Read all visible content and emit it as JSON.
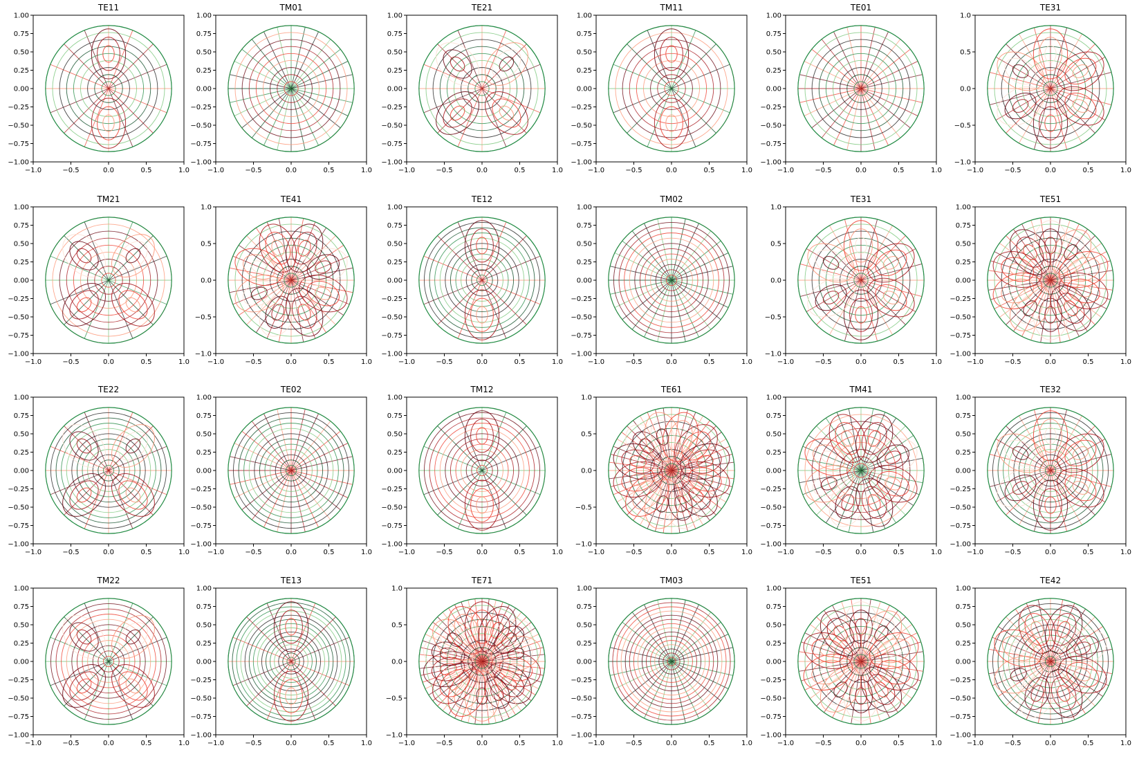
{
  "figure": {
    "layout": {
      "rows": 4,
      "cols": 6
    },
    "colors": {
      "electric_field": [
        "#fde0d2",
        "#fc9272",
        "#ef3b2c",
        "#a50f15",
        "#67000d"
      ],
      "magnetic_field": [
        "#c7e9c0",
        "#74c476",
        "#238b45",
        "#00441b",
        "#1a1a1a"
      ]
    }
  },
  "chart_data": [
    {
      "type": "streamplot",
      "title": "TE11",
      "mode": {
        "family": "TE",
        "m": 1,
        "n": 1
      },
      "xticks": [
        "−1.0",
        "−0.5",
        "0.0",
        "0.5",
        "1.0"
      ],
      "yticks": [
        "1.00",
        "0.75",
        "0.50",
        "0.25",
        "0.00",
        "−0.25",
        "−0.50",
        "−0.75",
        "−1.00"
      ],
      "xlim": [
        -1.0,
        1.0
      ],
      "ylim": [
        -1.0,
        1.0
      ],
      "grid": false,
      "legend": "none"
    },
    {
      "type": "streamplot",
      "title": "TM01",
      "mode": {
        "family": "TM",
        "m": 0,
        "n": 1
      },
      "xticks": [
        "−1.0",
        "−0.5",
        "0.0",
        "0.5",
        "1.0"
      ],
      "yticks": [
        "1.00",
        "0.75",
        "0.50",
        "0.25",
        "0.00",
        "−0.25",
        "−0.50",
        "−0.75",
        "−1.00"
      ],
      "xlim": [
        -1.0,
        1.0
      ],
      "ylim": [
        -1.0,
        1.0
      ],
      "grid": false,
      "legend": "none"
    },
    {
      "type": "streamplot",
      "title": "TE21",
      "mode": {
        "family": "TE",
        "m": 2,
        "n": 1
      },
      "xticks": [
        "−1.0",
        "−0.5",
        "0.0",
        "0.5",
        "1.0"
      ],
      "yticks": [
        "1.00",
        "0.75",
        "0.50",
        "0.25",
        "0.00",
        "−0.25",
        "−0.50",
        "−0.75",
        "−1.00"
      ],
      "xlim": [
        -1.0,
        1.0
      ],
      "ylim": [
        -1.0,
        1.0
      ],
      "grid": false,
      "legend": "none"
    },
    {
      "type": "streamplot",
      "title": "TM11",
      "mode": {
        "family": "TM",
        "m": 1,
        "n": 1
      },
      "xticks": [
        "−1.0",
        "−0.5",
        "0.0",
        "0.5",
        "1.0"
      ],
      "yticks": [
        "1.00",
        "0.75",
        "0.50",
        "0.25",
        "0.00",
        "−0.25",
        "−0.50",
        "−0.75",
        "−1.00"
      ],
      "xlim": [
        -1.0,
        1.0
      ],
      "ylim": [
        -1.0,
        1.0
      ],
      "grid": false,
      "legend": "none"
    },
    {
      "type": "streamplot",
      "title": "TE01",
      "mode": {
        "family": "TE",
        "m": 0,
        "n": 1
      },
      "xticks": [
        "−1.0",
        "−0.5",
        "0.0",
        "0.5",
        "1.0"
      ],
      "yticks": [
        "1.00",
        "0.75",
        "0.50",
        "0.25",
        "0.00",
        "−0.25",
        "−0.50",
        "−0.75",
        "−1.00"
      ],
      "xlim": [
        -1.0,
        1.0
      ],
      "ylim": [
        -1.0,
        1.0
      ],
      "grid": false,
      "legend": "none"
    },
    {
      "type": "streamplot",
      "title": "TE31",
      "mode": {
        "family": "TE",
        "m": 3,
        "n": 1
      },
      "xticks": [
        "−1.0",
        "−0.5",
        "0.0",
        "0.5",
        "1.0"
      ],
      "yticks": [
        "1.0",
        "0.5",
        "0.0",
        "−0.5",
        "−1.0"
      ],
      "xlim": [
        -1.0,
        1.0
      ],
      "ylim": [
        -1.0,
        1.0
      ],
      "grid": false,
      "legend": "none"
    },
    {
      "type": "streamplot",
      "title": "TM21",
      "mode": {
        "family": "TM",
        "m": 2,
        "n": 1
      },
      "xticks": [
        "−1.0",
        "−0.5",
        "0.0",
        "0.5",
        "1.0"
      ],
      "yticks": [
        "1.00",
        "0.75",
        "0.50",
        "0.25",
        "0.00",
        "−0.25",
        "−0.50",
        "−0.75",
        "−1.00"
      ],
      "xlim": [
        -1.0,
        1.0
      ],
      "ylim": [
        -1.0,
        1.0
      ],
      "grid": false,
      "legend": "none"
    },
    {
      "type": "streamplot",
      "title": "TE41",
      "mode": {
        "family": "TE",
        "m": 4,
        "n": 1
      },
      "xticks": [
        "−1.0",
        "−0.5",
        "0.0",
        "0.5",
        "1.0"
      ],
      "yticks": [
        "1.0",
        "0.5",
        "0.0",
        "−0.5",
        "−1.0"
      ],
      "xlim": [
        -1.0,
        1.0
      ],
      "ylim": [
        -1.0,
        1.0
      ],
      "grid": false,
      "legend": "none"
    },
    {
      "type": "streamplot",
      "title": "TE12",
      "mode": {
        "family": "TE",
        "m": 1,
        "n": 2
      },
      "xticks": [
        "−1.0",
        "−0.5",
        "0.0",
        "0.5",
        "1.0"
      ],
      "yticks": [
        "1.00",
        "0.75",
        "0.50",
        "0.25",
        "0.00",
        "−0.25",
        "−0.50",
        "−0.75",
        "−1.00"
      ],
      "xlim": [
        -1.0,
        1.0
      ],
      "ylim": [
        -1.0,
        1.0
      ],
      "grid": false,
      "legend": "none"
    },
    {
      "type": "streamplot",
      "title": "TM02",
      "mode": {
        "family": "TM",
        "m": 0,
        "n": 2
      },
      "xticks": [
        "−1.0",
        "−0.5",
        "0.0",
        "0.5",
        "1.0"
      ],
      "yticks": [
        "1.00",
        "0.75",
        "0.50",
        "0.25",
        "0.00",
        "−0.25",
        "−0.50",
        "−0.75",
        "−1.00"
      ],
      "xlim": [
        -1.0,
        1.0
      ],
      "ylim": [
        -1.0,
        1.0
      ],
      "grid": false,
      "legend": "none"
    },
    {
      "type": "streamplot",
      "title": "TE31",
      "mode": {
        "family": "TE",
        "m": 3,
        "n": 1
      },
      "xticks": [
        "−1.0",
        "−0.5",
        "0.0",
        "0.5",
        "1.0"
      ],
      "yticks": [
        "1.0",
        "0.5",
        "0.0",
        "−0.5",
        "−1.0"
      ],
      "xlim": [
        -1.0,
        1.0
      ],
      "ylim": [
        -1.0,
        1.0
      ],
      "grid": false,
      "legend": "none"
    },
    {
      "type": "streamplot",
      "title": "TE51",
      "mode": {
        "family": "TE",
        "m": 5,
        "n": 1
      },
      "xticks": [
        "−1.0",
        "−0.5",
        "0.0",
        "0.5",
        "1.0"
      ],
      "yticks": [
        "1.00",
        "0.75",
        "0.50",
        "0.25",
        "0.00",
        "−0.25",
        "−0.50",
        "−0.75",
        "−1.00"
      ],
      "xlim": [
        -1.0,
        1.0
      ],
      "ylim": [
        -1.0,
        1.0
      ],
      "grid": false,
      "legend": "none"
    },
    {
      "type": "streamplot",
      "title": "TE22",
      "mode": {
        "family": "TE",
        "m": 2,
        "n": 2
      },
      "xticks": [
        "−1.0",
        "−0.5",
        "0.0",
        "0.5",
        "1.0"
      ],
      "yticks": [
        "1.00",
        "0.75",
        "0.50",
        "0.25",
        "0.00",
        "−0.25",
        "−0.50",
        "−0.75",
        "−1.00"
      ],
      "xlim": [
        -1.0,
        1.0
      ],
      "ylim": [
        -1.0,
        1.0
      ],
      "grid": false,
      "legend": "none"
    },
    {
      "type": "streamplot",
      "title": "TE02",
      "mode": {
        "family": "TE",
        "m": 0,
        "n": 2
      },
      "xticks": [
        "−1.0",
        "−0.5",
        "0.0",
        "0.5",
        "1.0"
      ],
      "yticks": [
        "1.00",
        "0.75",
        "0.50",
        "0.25",
        "0.00",
        "−0.25",
        "−0.50",
        "−0.75",
        "−1.00"
      ],
      "xlim": [
        -1.0,
        1.0
      ],
      "ylim": [
        -1.0,
        1.0
      ],
      "grid": false,
      "legend": "none"
    },
    {
      "type": "streamplot",
      "title": "TM12",
      "mode": {
        "family": "TM",
        "m": 1,
        "n": 2
      },
      "xticks": [
        "−1.0",
        "−0.5",
        "0.0",
        "0.5",
        "1.0"
      ],
      "yticks": [
        "1.00",
        "0.75",
        "0.50",
        "0.25",
        "0.00",
        "−0.25",
        "−0.50",
        "−0.75",
        "−1.00"
      ],
      "xlim": [
        -1.0,
        1.0
      ],
      "ylim": [
        -1.0,
        1.0
      ],
      "grid": false,
      "legend": "none"
    },
    {
      "type": "streamplot",
      "title": "TE61",
      "mode": {
        "family": "TE",
        "m": 6,
        "n": 1
      },
      "xticks": [
        "−1.0",
        "−0.5",
        "0.0",
        "0.5",
        "1.0"
      ],
      "yticks": [
        "1.0",
        "0.5",
        "0.0",
        "−0.5",
        "−1.0"
      ],
      "xlim": [
        -1.0,
        1.0
      ],
      "ylim": [
        -1.0,
        1.0
      ],
      "grid": false,
      "legend": "none"
    },
    {
      "type": "streamplot",
      "title": "TM41",
      "mode": {
        "family": "TM",
        "m": 4,
        "n": 1
      },
      "xticks": [
        "−1.0",
        "−0.5",
        "0.0",
        "0.5",
        "1.0"
      ],
      "yticks": [
        "1.00",
        "0.75",
        "0.50",
        "0.25",
        "0.00",
        "−0.25",
        "−0.50",
        "−0.75",
        "−1.00"
      ],
      "xlim": [
        -1.0,
        1.0
      ],
      "ylim": [
        -1.0,
        1.0
      ],
      "grid": false,
      "legend": "none"
    },
    {
      "type": "streamplot",
      "title": "TE32",
      "mode": {
        "family": "TE",
        "m": 3,
        "n": 2
      },
      "xticks": [
        "−1.0",
        "−0.5",
        "0.0",
        "0.5",
        "1.0"
      ],
      "yticks": [
        "1.00",
        "0.75",
        "0.50",
        "0.25",
        "0.00",
        "−0.25",
        "−0.50",
        "−0.75",
        "−1.00"
      ],
      "xlim": [
        -1.0,
        1.0
      ],
      "ylim": [
        -1.0,
        1.0
      ],
      "grid": false,
      "legend": "none"
    },
    {
      "type": "streamplot",
      "title": "TM22",
      "mode": {
        "family": "TM",
        "m": 2,
        "n": 2
      },
      "xticks": [
        "−1.0",
        "−0.5",
        "0.0",
        "0.5",
        "1.0"
      ],
      "yticks": [
        "1.00",
        "0.75",
        "0.50",
        "0.25",
        "0.00",
        "−0.25",
        "−0.50",
        "−0.75",
        "−1.00"
      ],
      "xlim": [
        -1.0,
        1.0
      ],
      "ylim": [
        -1.0,
        1.0
      ],
      "grid": false,
      "legend": "none"
    },
    {
      "type": "streamplot",
      "title": "TE13",
      "mode": {
        "family": "TE",
        "m": 1,
        "n": 3
      },
      "xticks": [
        "−1.0",
        "−0.5",
        "0.0",
        "0.5",
        "1.0"
      ],
      "yticks": [
        "1.00",
        "0.75",
        "0.50",
        "0.25",
        "0.00",
        "−0.25",
        "−0.50",
        "−0.75",
        "−1.00"
      ],
      "xlim": [
        -1.0,
        1.0
      ],
      "ylim": [
        -1.0,
        1.0
      ],
      "grid": false,
      "legend": "none"
    },
    {
      "type": "streamplot",
      "title": "TE71",
      "mode": {
        "family": "TE",
        "m": 7,
        "n": 1
      },
      "xticks": [
        "−1.0",
        "−0.5",
        "0.0",
        "0.5",
        "1.0"
      ],
      "yticks": [
        "1.0",
        "0.5",
        "0.0",
        "−0.5",
        "−1.0"
      ],
      "xlim": [
        -1.0,
        1.0
      ],
      "ylim": [
        -1.0,
        1.0
      ],
      "grid": false,
      "legend": "none"
    },
    {
      "type": "streamplot",
      "title": "TM03",
      "mode": {
        "family": "TM",
        "m": 0,
        "n": 3
      },
      "xticks": [
        "−1.0",
        "−0.5",
        "0.0",
        "0.5",
        "1.0"
      ],
      "yticks": [
        "1.00",
        "0.75",
        "0.50",
        "0.25",
        "0.00",
        "−0.25",
        "−0.50",
        "−0.75",
        "−1.00"
      ],
      "xlim": [
        -1.0,
        1.0
      ],
      "ylim": [
        -1.0,
        1.0
      ],
      "grid": false,
      "legend": "none"
    },
    {
      "type": "streamplot",
      "title": "TE51",
      "mode": {
        "family": "TE",
        "m": 5,
        "n": 1
      },
      "xticks": [
        "−1.0",
        "−0.5",
        "0.0",
        "0.5",
        "1.0"
      ],
      "yticks": [
        "1.00",
        "0.75",
        "0.50",
        "0.25",
        "0.00",
        "−0.25",
        "−0.50",
        "−0.75",
        "−1.00"
      ],
      "xlim": [
        -1.0,
        1.0
      ],
      "ylim": [
        -1.0,
        1.0
      ],
      "grid": false,
      "legend": "none"
    },
    {
      "type": "streamplot",
      "title": "TE42",
      "mode": {
        "family": "TE",
        "m": 4,
        "n": 2
      },
      "xticks": [
        "−1.0",
        "−0.5",
        "0.0",
        "0.5",
        "1.0"
      ],
      "yticks": [
        "1.00",
        "0.75",
        "0.50",
        "0.25",
        "0.00",
        "−0.25",
        "−0.50",
        "−0.75",
        "−1.00"
      ],
      "xlim": [
        -1.0,
        1.0
      ],
      "ylim": [
        -1.0,
        1.0
      ],
      "grid": false,
      "legend": "none"
    }
  ]
}
